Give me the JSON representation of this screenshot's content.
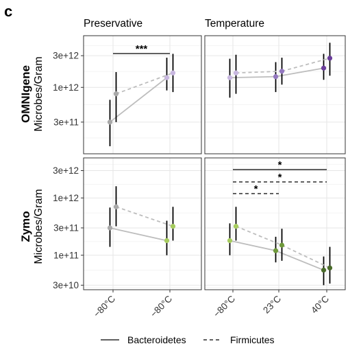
{
  "panel_letter": "c",
  "colors": {
    "connector": "#bdbdbd",
    "errorbar": "#000000",
    "lilac": "#c8b7e0",
    "mid_purple": "#9478c0",
    "dark_purple": "#6a3d9a",
    "grey_point": "#a8a8a8",
    "light_green": "#a6cc5e",
    "mid_green": "#6f9a3b",
    "dark_green": "#4a6b2a"
  },
  "chart_data": {
    "type": "scatter",
    "column_titles": [
      "Preservative",
      "Temperature"
    ],
    "row_titles": [
      {
        "bold": "OMNIgene",
        "sub": "Microbes/Gram"
      },
      {
        "bold": "Zymo",
        "sub": "Microbes/Gram"
      }
    ],
    "ylabel": "Microbes/Gram",
    "yscale": "log10",
    "rows": [
      {
        "ylim": [
          100000000000,
          6000000000000
        ],
        "yticks": [
          {
            "v": 300000000000,
            "label": "3e+11"
          },
          {
            "v": 1000000000000,
            "label": "1e+12"
          },
          {
            "v": 3000000000000,
            "label": "3e+12"
          }
        ]
      },
      {
        "ylim": [
          25000000000,
          5000000000000
        ],
        "yticks": [
          {
            "v": 30000000000,
            "label": "3e+10"
          },
          {
            "v": 100000000000,
            "label": "1e+11"
          },
          {
            "v": 300000000000,
            "label": "3e+11"
          },
          {
            "v": 1000000000000,
            "label": "1e+12"
          },
          {
            "v": 3000000000000,
            "label": "3e+12"
          }
        ]
      }
    ],
    "columns": [
      {
        "categories": [
          "−80°C",
          "−80°C"
        ]
      },
      {
        "categories": [
          "−80°C",
          "23°C",
          "40°C"
        ]
      }
    ],
    "panels": [
      {
        "row": 0,
        "col": 0,
        "series": [
          {
            "taxon": "Bacteroidetes",
            "line": "solid",
            "values": [
              300000000000,
              1400000000000
            ],
            "lo": [
              130000000000,
              900000000000
            ],
            "hi": [
              650000000000,
              2800000000000
            ],
            "colors": [
              "grey_point",
              "lilac"
            ]
          },
          {
            "taxon": "Firmicutes",
            "line": "dashed",
            "values": [
              800000000000,
              1650000000000
            ],
            "lo": [
              300000000000,
              850000000000
            ],
            "hi": [
              1700000000000,
              3200000000000
            ],
            "colors": [
              "grey_point",
              "lilac"
            ]
          }
        ],
        "significance": [
          {
            "from": 0,
            "to": 1,
            "label": "***",
            "line": "solid"
          }
        ]
      },
      {
        "row": 0,
        "col": 1,
        "series": [
          {
            "taxon": "Bacteroidetes",
            "line": "solid",
            "values": [
              1400000000000,
              1450000000000,
              1950000000000
            ],
            "lo": [
              700000000000,
              850000000000,
              1300000000000
            ],
            "hi": [
              2700000000000,
              2400000000000,
              3200000000000
            ],
            "colors": [
              "lilac",
              "mid_purple",
              "dark_purple"
            ]
          },
          {
            "taxon": "Firmicutes",
            "line": "dashed",
            "values": [
              1650000000000,
              1750000000000,
              2750000000000
            ],
            "lo": [
              800000000000,
              1100000000000,
              1500000000000
            ],
            "hi": [
              3100000000000,
              2800000000000,
              4700000000000
            ],
            "colors": [
              "lilac",
              "mid_purple",
              "dark_purple"
            ]
          }
        ],
        "significance": []
      },
      {
        "row": 1,
        "col": 0,
        "series": [
          {
            "taxon": "Bacteroidetes",
            "line": "solid",
            "values": [
              300000000000,
              180000000000
            ],
            "lo": [
              140000000000,
              100000000000
            ],
            "hi": [
              680000000000,
              400000000000
            ],
            "colors": [
              "grey_point",
              "light_green"
            ]
          },
          {
            "taxon": "Firmicutes",
            "line": "dashed",
            "values": [
              700000000000,
              320000000000
            ],
            "lo": [
              320000000000,
              180000000000
            ],
            "hi": [
              1600000000000,
              700000000000
            ],
            "colors": [
              "grey_point",
              "light_green"
            ]
          }
        ],
        "significance": []
      },
      {
        "row": 1,
        "col": 1,
        "series": [
          {
            "taxon": "Bacteroidetes",
            "line": "solid",
            "values": [
              180000000000,
              120000000000,
              55000000000
            ],
            "lo": [
              100000000000,
              75000000000,
              30000000000
            ],
            "hi": [
              360000000000,
              210000000000,
              95000000000
            ],
            "colors": [
              "light_green",
              "mid_green",
              "dark_green"
            ]
          },
          {
            "taxon": "Firmicutes",
            "line": "dashed",
            "values": [
              320000000000,
              150000000000,
              60000000000
            ],
            "lo": [
              180000000000,
              80000000000,
              32000000000
            ],
            "hi": [
              700000000000,
              290000000000,
              140000000000
            ],
            "colors": [
              "light_green",
              "mid_green",
              "dark_green"
            ]
          }
        ],
        "significance": [
          {
            "from": 0,
            "to": 2,
            "label": "*",
            "line": "solid",
            "level": 0
          },
          {
            "from": 0,
            "to": 2,
            "label": "*",
            "line": "dashed",
            "level": 1
          },
          {
            "from": 0,
            "to": 1,
            "label": "*",
            "line": "dashed",
            "level": 2
          }
        ]
      }
    ],
    "legend": {
      "placement": "bottom",
      "entries": [
        {
          "label": "Bacteroidetes",
          "line": "solid"
        },
        {
          "label": "Firmicutes",
          "line": "dashed"
        }
      ]
    }
  }
}
